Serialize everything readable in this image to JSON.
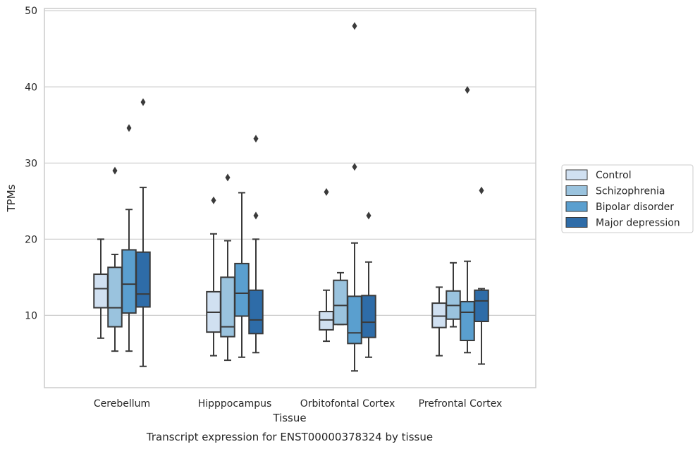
{
  "chart_data": {
    "type": "box",
    "title": "",
    "caption": "Transcript expression for ENST00000378324 by tissue",
    "xlabel": "Tissue",
    "ylabel": "TPMs",
    "ylim": [
      0.5,
      50.3
    ],
    "yticks": [
      10,
      20,
      30,
      40,
      50
    ],
    "grid": true,
    "legend_position": "right",
    "categories": [
      "Cerebellum",
      "Hipppocampus",
      "Orbitofontal Cortex",
      "Prefrontal Cortex"
    ],
    "series": [
      {
        "name": "Control",
        "color": "#d0e0f1",
        "boxes": [
          {
            "whisker_low": 7.0,
            "q1": 11.0,
            "median": 13.5,
            "q3": 15.4,
            "whisker_high": 20.0,
            "outliers": []
          },
          {
            "whisker_low": 4.7,
            "q1": 7.8,
            "median": 10.4,
            "q3": 13.1,
            "whisker_high": 20.7,
            "outliers": [
              25.1
            ]
          },
          {
            "whisker_low": 6.6,
            "q1": 8.1,
            "median": 9.4,
            "q3": 10.5,
            "whisker_high": 13.3,
            "outliers": [
              26.2
            ]
          },
          {
            "whisker_low": 4.7,
            "q1": 8.4,
            "median": 9.9,
            "q3": 11.6,
            "whisker_high": 13.7,
            "outliers": []
          }
        ]
      },
      {
        "name": "Schizophrenia",
        "color": "#9ac3de",
        "boxes": [
          {
            "whisker_low": 5.3,
            "q1": 8.5,
            "median": 11.0,
            "q3": 16.3,
            "whisker_high": 18.0,
            "outliers": [
              29.0
            ]
          },
          {
            "whisker_low": 4.1,
            "q1": 7.2,
            "median": 8.5,
            "q3": 15.0,
            "whisker_high": 19.8,
            "outliers": [
              28.1
            ]
          },
          {
            "whisker_low": 8.8,
            "q1": 8.8,
            "median": 11.3,
            "q3": 14.6,
            "whisker_high": 15.6,
            "outliers": []
          },
          {
            "whisker_low": 8.5,
            "q1": 9.5,
            "median": 11.3,
            "q3": 13.2,
            "whisker_high": 16.9,
            "outliers": []
          }
        ]
      },
      {
        "name": "Bipolar disorder",
        "color": "#5a9fcf",
        "boxes": [
          {
            "whisker_low": 5.3,
            "q1": 10.3,
            "median": 14.1,
            "q3": 18.6,
            "whisker_high": 23.9,
            "outliers": [
              34.6
            ]
          },
          {
            "whisker_low": 4.5,
            "q1": 9.9,
            "median": 12.9,
            "q3": 16.8,
            "whisker_high": 26.1,
            "outliers": []
          },
          {
            "whisker_low": 2.7,
            "q1": 6.3,
            "median": 7.7,
            "q3": 12.5,
            "whisker_high": 19.5,
            "outliers": [
              29.5,
              48.0
            ]
          },
          {
            "whisker_low": 5.1,
            "q1": 6.7,
            "median": 10.4,
            "q3": 11.8,
            "whisker_high": 17.1,
            "outliers": [
              39.6
            ]
          }
        ]
      },
      {
        "name": "Major depression",
        "color": "#2e6ca8",
        "boxes": [
          {
            "whisker_low": 3.3,
            "q1": 11.1,
            "median": 12.8,
            "q3": 18.3,
            "whisker_high": 26.8,
            "outliers": [
              38.0
            ]
          },
          {
            "whisker_low": 5.1,
            "q1": 7.6,
            "median": 9.4,
            "q3": 13.3,
            "whisker_high": 20.0,
            "outliers": [
              23.1,
              33.2
            ]
          },
          {
            "whisker_low": 4.5,
            "q1": 7.1,
            "median": 9.1,
            "q3": 12.6,
            "whisker_high": 17.0,
            "outliers": [
              23.1
            ]
          },
          {
            "whisker_low": 3.6,
            "q1": 9.2,
            "median": 11.9,
            "q3": 13.3,
            "whisker_high": 13.5,
            "outliers": [
              26.4
            ]
          }
        ]
      }
    ]
  }
}
